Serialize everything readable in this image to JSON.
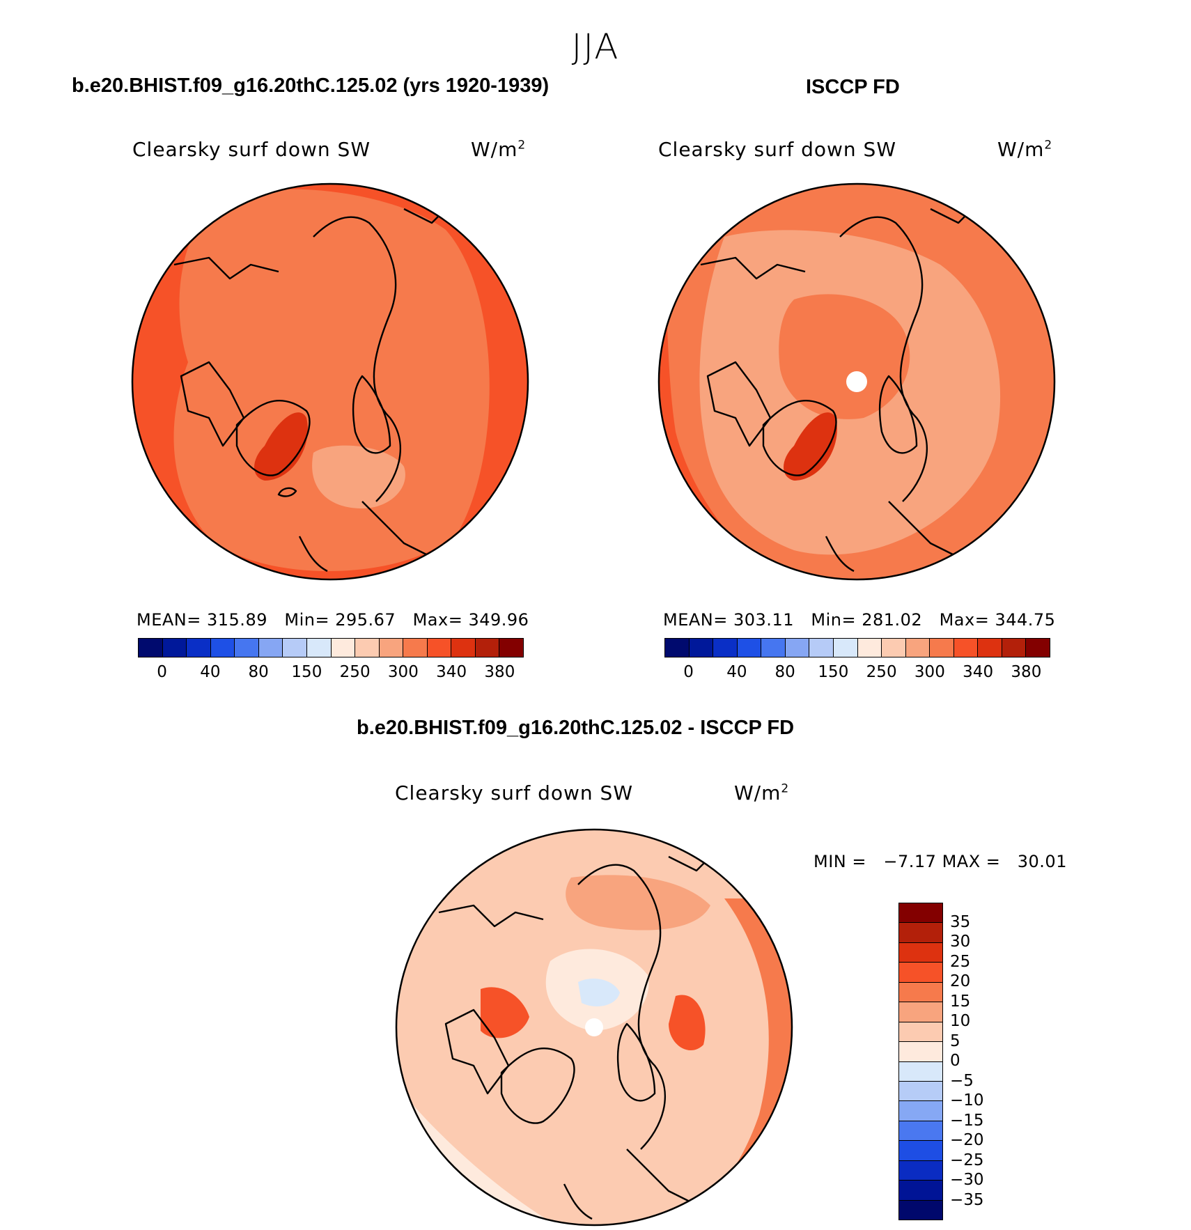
{
  "title": "JJA",
  "panels": [
    {
      "id": "model",
      "title": "b.e20.BHIST.f09_g16.20thC.125.02 (yrs 1920-1939)",
      "subtitle": "Clearsky surf down SW",
      "units": "W/m",
      "units_sup": "2",
      "stats": {
        "mean_label": "MEAN=",
        "mean": "315.89",
        "min_label": "Min=",
        "min": "295.67",
        "max_label": "Max=",
        "max": "349.96"
      }
    },
    {
      "id": "obs",
      "title": "ISCCP FD",
      "subtitle": "Clearsky surf down SW",
      "units": "W/m",
      "units_sup": "2",
      "stats": {
        "mean_label": "MEAN=",
        "mean": "303.11",
        "min_label": "Min=",
        "min": "281.02",
        "max_label": "Max=",
        "max": "344.75"
      }
    }
  ],
  "diff_panel": {
    "title": "b.e20.BHIST.f09_g16.20thC.125.02 - ISCCP FD",
    "subtitle": "Clearsky surf down SW",
    "units": "W/m",
    "units_sup": "2",
    "stats": {
      "min_label": "MIN =",
      "min": "−7.17",
      "max_label": "MAX =",
      "max": "30.01"
    }
  },
  "colorbar_main": {
    "colors": [
      "#000a6e",
      "#00189a",
      "#0a2fc6",
      "#1e50e6",
      "#4676f0",
      "#86a6f3",
      "#b6cbf7",
      "#d8e8fa",
      "#feeadd",
      "#fccbb1",
      "#f8a47e",
      "#f67a4c",
      "#f65228",
      "#dd3210",
      "#b3200a",
      "#830000"
    ],
    "ticks": [
      "0",
      "40",
      "80",
      "150",
      "250",
      "300",
      "340",
      "380"
    ]
  },
  "colorbar_diff": {
    "colors": [
      "#00086c",
      "#001496",
      "#0a2cc2",
      "#1e4ee4",
      "#4a78f0",
      "#86a8f4",
      "#b6ccf7",
      "#d8e8fa",
      "#feeadd",
      "#fccbb1",
      "#f8a47e",
      "#f67a4c",
      "#f65228",
      "#dd3210",
      "#b3200a",
      "#830000"
    ],
    "ticks": [
      "35",
      "30",
      "25",
      "20",
      "15",
      "10",
      "5",
      "0",
      "−5",
      "−10",
      "−15",
      "−20",
      "−25",
      "−30",
      "−35"
    ]
  }
}
